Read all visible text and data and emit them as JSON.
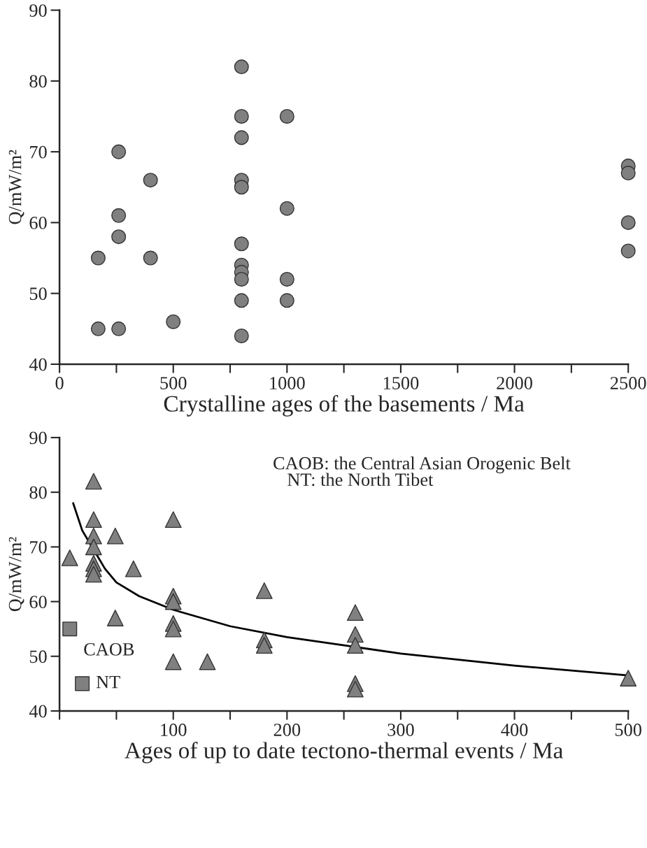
{
  "chart_data": [
    {
      "type": "scatter",
      "xlabel": "Crystalline ages of the basements / Ma",
      "ylabel": "Q/mW/m²",
      "xlim": [
        0,
        2500
      ],
      "ylim": [
        40,
        90
      ],
      "xticks": [
        0,
        {
          "value": 250,
          "label": null
        },
        500,
        {
          "value": 750,
          "label": null
        },
        1000,
        {
          "value": 1250,
          "label": null
        },
        1500,
        {
          "value": 1750,
          "label": null
        },
        2000,
        {
          "value": 2250,
          "label": null
        },
        2500
      ],
      "yticks": [
        40,
        50,
        60,
        70,
        80,
        90
      ],
      "grid": false,
      "legend": false,
      "series": [
        {
          "marker": "circle",
          "color": "#808080",
          "x": [
            170,
            170,
            260,
            260,
            260,
            260,
            400,
            400,
            500,
            800,
            800,
            800,
            800,
            800,
            800,
            800,
            800,
            800,
            800,
            800,
            1000,
            1000,
            1000,
            1000,
            2500,
            2500,
            2500,
            2500
          ],
          "values": [
            55,
            45,
            70,
            61,
            58,
            45,
            66,
            55,
            46,
            82,
            75,
            72,
            66,
            65,
            57,
            54,
            53,
            52,
            49,
            44,
            75,
            62,
            52,
            49,
            68,
            67,
            60,
            56
          ]
        }
      ]
    },
    {
      "type": "scatter",
      "xlabel": "Ages of up to date tectono-thermal events / Ma",
      "ylabel": "Q/mW/m²",
      "xlim": [
        0,
        500
      ],
      "ylim": [
        40,
        90
      ],
      "xticks": [
        {
          "value": 0,
          "label": null
        },
        {
          "value": 50,
          "label": null
        },
        100,
        {
          "value": 150,
          "label": null
        },
        200,
        {
          "value": 250,
          "label": null
        },
        300,
        {
          "value": 350,
          "label": null
        },
        400,
        {
          "value": 450,
          "label": null
        },
        500
      ],
      "yticks": [
        40,
        50,
        60,
        70,
        80,
        90
      ],
      "grid": false,
      "legend": false,
      "series": [
        {
          "marker": "triangle",
          "color": "#808080",
          "x": [
            9,
            30,
            30,
            30,
            30,
            30,
            30,
            30,
            49,
            49,
            65,
            100,
            100,
            100,
            100,
            100,
            100,
            130,
            180,
            180,
            180,
            260,
            260,
            260,
            260,
            260,
            500
          ],
          "values": [
            68,
            82,
            75,
            72,
            70,
            67,
            66,
            65,
            72,
            57,
            66,
            75,
            61,
            60,
            56,
            55,
            49,
            49,
            62,
            53,
            52,
            58,
            54,
            52,
            45,
            44,
            46
          ]
        },
        {
          "marker": "square",
          "color": "#808080",
          "x": [
            9,
            20
          ],
          "values": [
            55,
            45
          ]
        },
        {
          "type": "line",
          "marker": "none",
          "line_style": "solid",
          "color": "#000000",
          "x": [
            12,
            20,
            30,
            40,
            50,
            70,
            100,
            150,
            200,
            260,
            300,
            400,
            500
          ],
          "values": [
            78,
            73,
            69.5,
            66,
            63.5,
            61,
            58.5,
            55.5,
            53.5,
            51.7,
            50.5,
            48.3,
            46.5
          ]
        }
      ],
      "annotations": [
        {
          "text": "CAOB",
          "x": 9,
          "y": 55
        },
        {
          "text": "NT",
          "x": 20,
          "y": 45
        },
        "CAOB: the Central Asian Orogenic Belt",
        "NT: the North Tibet"
      ]
    }
  ]
}
